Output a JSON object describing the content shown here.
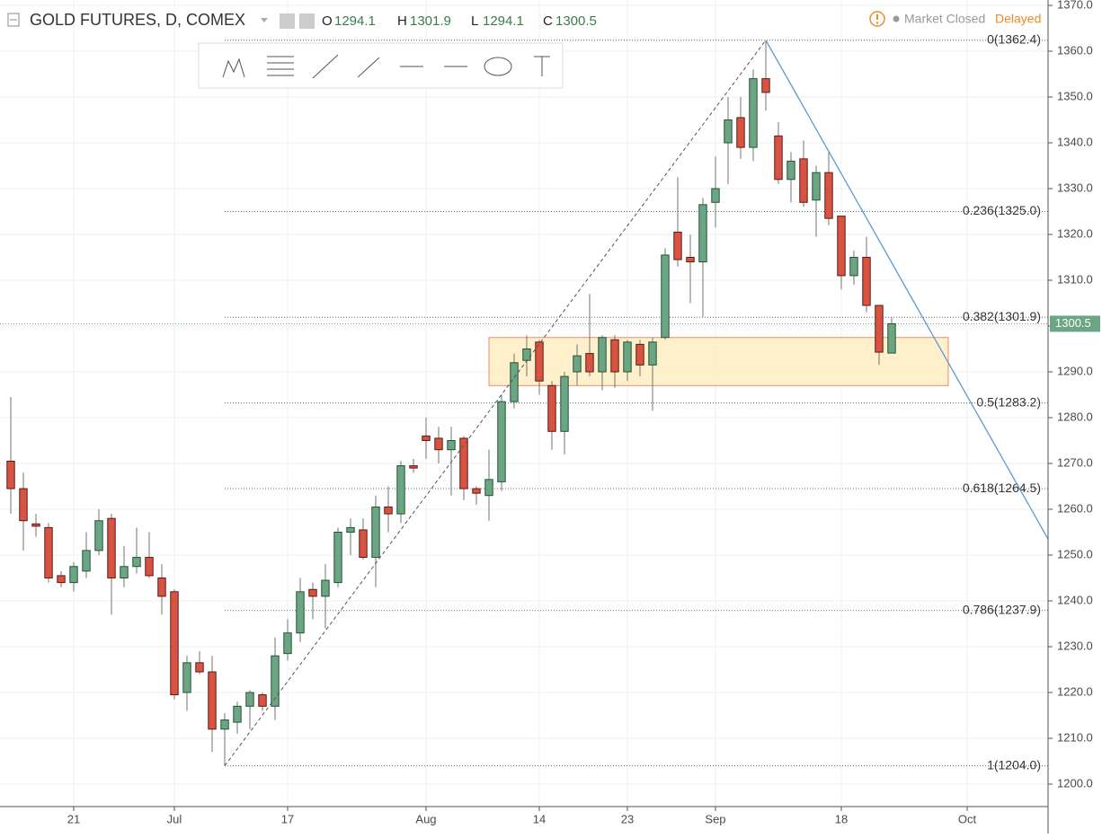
{
  "header": {
    "symbol": "GOLD FUTURES, D, COMEX",
    "ohlc_labels": [
      "O",
      "H",
      "L",
      "C"
    ],
    "status": "Market Closed",
    "delay": "Delayed"
  },
  "chart_data": {
    "type": "candlestick",
    "open": [
      1270.5,
      1264.5,
      1256.8,
      1256,
      1245.5,
      1244,
      1246.5,
      1251,
      1258,
      1245,
      1247.5,
      1249.5,
      1245,
      1242,
      1220,
      1226.5,
      1224.5,
      1212,
      1213.5,
      1217,
      1219.5,
      1217,
      1228.5,
      1233,
      1242.5,
      1241,
      1244,
      1255,
      1255.5,
      1249.5,
      1260.5,
      1259,
      1269.5,
      1276,
      1275.5,
      1273,
      1275.5,
      1264.5,
      1263,
      1266,
      1283.5,
      1292.5,
      1296.5,
      1287,
      1277,
      1290,
      1294,
      1290,
      1297,
      1290,
      1296,
      1291.5,
      1297.5,
      1320.5,
      1315,
      1314,
      1327,
      1340,
      1345.5,
      1339,
      1354,
      1341.5,
      1332,
      1336.5,
      1327.5,
      1333.5,
      1324,
      1311,
      1315,
      1304.5,
      1294.1
    ],
    "high": [
      1284.5,
      1268,
      1259,
      1257,
      1246.5,
      1248.5,
      1255,
      1260,
      1259,
      1252,
      1256,
      1255,
      1248,
      1242.5,
      1228,
      1229,
      1228,
      1215.5,
      1218,
      1220.5,
      1220,
      1232,
      1236,
      1245,
      1244,
      1248,
      1256,
      1258,
      1258,
      1263,
      1265,
      1270.5,
      1271,
      1280,
      1278,
      1278,
      1276,
      1265,
      1273,
      1285,
      1294,
      1298,
      1297,
      1288,
      1290,
      1296,
      1307,
      1298,
      1298,
      1297,
      1297,
      1297.5,
      1317,
      1332.5,
      1320,
      1328,
      1337,
      1350,
      1350,
      1356,
      1362.4,
      1344.5,
      1338,
      1340.5,
      1335,
      1338,
      1324,
      1316.5,
      1319.5,
      1304.5,
      1301.9
    ],
    "low": [
      1259,
      1251,
      1254,
      1244,
      1243,
      1242,
      1245,
      1250,
      1237,
      1243,
      1246,
      1245,
      1237,
      1218.5,
      1216,
      1224,
      1207,
      1204,
      1211,
      1212,
      1216,
      1214,
      1227,
      1231,
      1236,
      1234,
      1243,
      1250,
      1249,
      1243,
      1255,
      1257,
      1268,
      1271,
      1270,
      1263,
      1262,
      1261,
      1257.5,
      1264,
      1282,
      1289,
      1285,
      1273,
      1272,
      1287,
      1289,
      1286,
      1286.5,
      1288,
      1289,
      1281.5,
      1297,
      1313,
      1305,
      1302,
      1321.5,
      1331,
      1336.5,
      1336,
      1347,
      1331,
      1327,
      1326,
      1319.5,
      1322,
      1308,
      1309,
      1303,
      1291.5,
      1294.1
    ],
    "close": [
      1264.5,
      1257.5,
      1256.3,
      1245,
      1244,
      1247.5,
      1251,
      1257.5,
      1245,
      1247.5,
      1249.5,
      1245.5,
      1241,
      1219.5,
      1226.5,
      1224.5,
      1212,
      1214,
      1217,
      1220,
      1217,
      1228,
      1233,
      1242,
      1241,
      1244.5,
      1255,
      1256,
      1249.5,
      1260.5,
      1259,
      1269.5,
      1269,
      1275,
      1273,
      1275,
      1264.5,
      1263.5,
      1266.5,
      1283.5,
      1292,
      1295,
      1288,
      1277,
      1289,
      1293.5,
      1290,
      1297.5,
      1290,
      1296.5,
      1291.5,
      1296.5,
      1315.5,
      1314.5,
      1314,
      1326.5,
      1330,
      1345,
      1339,
      1354,
      1351,
      1332,
      1336,
      1327,
      1333.5,
      1323.5,
      1311,
      1315,
      1304.5,
      1294.3,
      1300.5
    ],
    "up_color": "#6ba583",
    "down_color": "#d75442",
    "xlim": [
      -0.857,
      82.43
    ],
    "xticks": [
      {
        "value": 5,
        "label": "21"
      },
      {
        "value": 13,
        "label": "Jul"
      },
      {
        "value": 22,
        "label": "17"
      },
      {
        "value": 33,
        "label": "Aug"
      },
      {
        "value": 42,
        "label": "14"
      },
      {
        "value": 49,
        "label": "23"
      },
      {
        "value": 56,
        "label": "Sep"
      },
      {
        "value": 66,
        "label": "18"
      },
      {
        "value": 76,
        "label": "Oct"
      }
    ],
    "ylim": [
      1200,
      1370
    ],
    "yticks": [
      {
        "value": 1200,
        "label": "1200.0"
      },
      {
        "value": 1210,
        "label": "1210.0"
      },
      {
        "value": 1220,
        "label": "1220.0"
      },
      {
        "value": 1230,
        "label": "1230.0"
      },
      {
        "value": 1240,
        "label": "1240.0"
      },
      {
        "value": 1250,
        "label": "1250.0"
      },
      {
        "value": 1260,
        "label": "1260.0"
      },
      {
        "value": 1270,
        "label": "1270.0"
      },
      {
        "value": 1280,
        "label": "1280.0"
      },
      {
        "value": 1290,
        "label": "1290.0"
      },
      {
        "value": 1300,
        "label": "1300.0"
      },
      {
        "value": 1310,
        "label": "1310.0"
      },
      {
        "value": 1320,
        "label": "1320.0"
      },
      {
        "value": 1330,
        "label": "1330.0"
      },
      {
        "value": 1340,
        "label": "1340.0"
      },
      {
        "value": 1350,
        "label": "1350.0"
      },
      {
        "value": 1360,
        "label": "1360.0"
      },
      {
        "value": 1370,
        "label": "1370.0"
      }
    ],
    "grid": true,
    "fib_levels": [
      {
        "value": 1362.4,
        "label": "0(1362.4)"
      },
      {
        "value": 1325.0,
        "label": "0.236(1325.0)"
      },
      {
        "value": 1301.9,
        "label": "0.382(1301.9)"
      },
      {
        "value": 1283.2,
        "label": "0.5(1283.2)"
      },
      {
        "value": 1264.5,
        "label": "0.618(1264.5)"
      },
      {
        "value": 1237.9,
        "label": "0.786(1237.9)"
      },
      {
        "value": 1204.0,
        "label": "1(1204.0)"
      }
    ],
    "zone": {
      "x": [
        38,
        74.5
      ],
      "y": [
        1287,
        1297.5
      ]
    },
    "trendline": {
      "x": [
        60,
        82.43
      ],
      "y": [
        1362.4,
        1253.5
      ],
      "color": "#5b9bd5"
    }
  }
}
